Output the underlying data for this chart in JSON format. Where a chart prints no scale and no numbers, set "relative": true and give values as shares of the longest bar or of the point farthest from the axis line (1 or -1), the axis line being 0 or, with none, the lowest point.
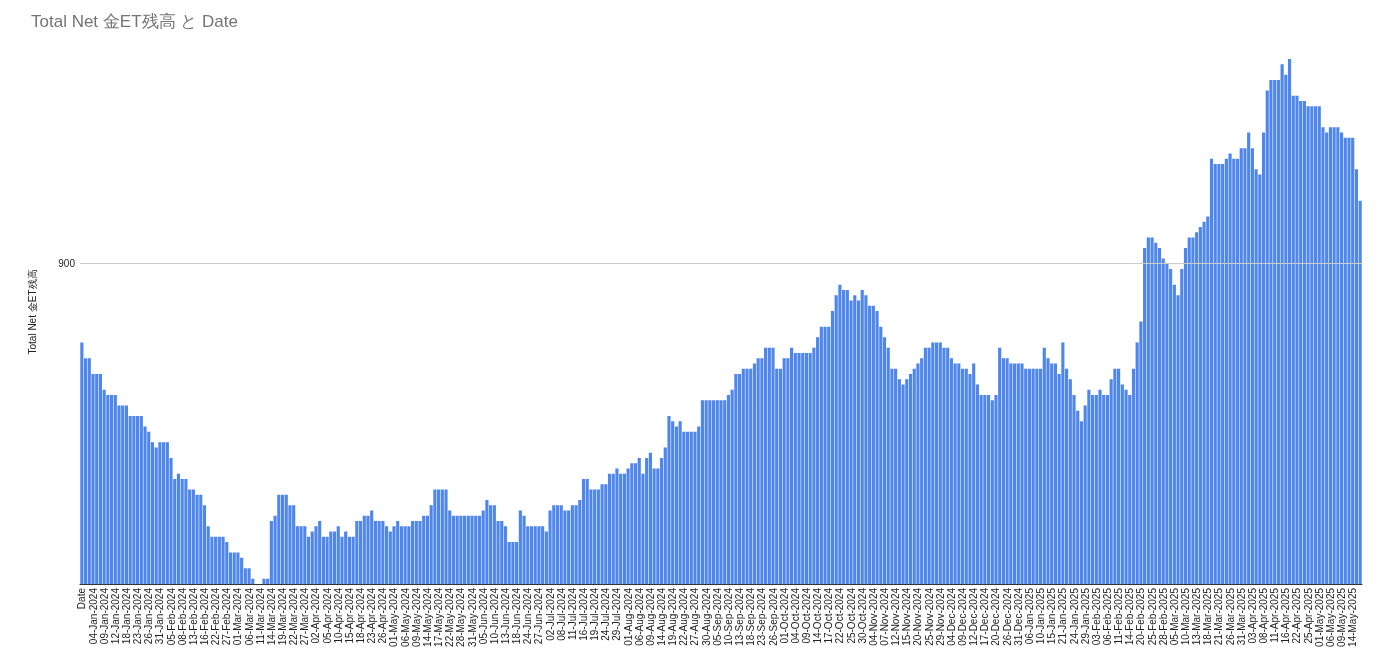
{
  "chart_data": {
    "type": "bar",
    "title": "Total Net 金ET残高 と Date",
    "ylabel": "Total Net 金ET残高",
    "relative": true,
    "color": "#4f86ec",
    "ref_lines": [
      {
        "axis": "y",
        "value": 0.61,
        "color": "#cccccc"
      }
    ],
    "annotations": [
      "900"
    ],
    "categories": [
      "Date",
      null,
      null,
      "04-Jan-2024",
      null,
      null,
      "09-Jan-2024",
      null,
      null,
      "12-Jan-2024",
      null,
      null,
      "18-Jan-2024",
      null,
      null,
      "23-Jan-2024",
      null,
      null,
      "26-Jan-2024",
      null,
      null,
      "31-Jan-2024",
      null,
      null,
      "05-Feb-2024",
      null,
      null,
      "08-Feb-2024",
      null,
      null,
      "13-Feb-2024",
      null,
      null,
      "16-Feb-2024",
      null,
      null,
      "22-Feb-2024",
      null,
      null,
      "27-Feb-2024",
      null,
      null,
      "01-Mar-2024",
      null,
      null,
      "06-Mar-2024",
      null,
      null,
      "11-Mar-2024",
      null,
      null,
      "14-Mar-2024",
      null,
      null,
      "19-Mar-2024",
      null,
      null,
      "22-Mar-2024",
      null,
      null,
      "27-Mar-2024",
      null,
      null,
      "02-Apr-2024",
      null,
      null,
      "05-Apr-2024",
      null,
      null,
      "10-Apr-2024",
      null,
      null,
      "15-Apr-2024",
      null,
      null,
      "18-Apr-2024",
      null,
      null,
      "23-Apr-2024",
      null,
      null,
      "26-Apr-2024",
      null,
      null,
      "01-May-2024",
      null,
      null,
      "06-May-2024",
      null,
      null,
      "09-May-2024",
      null,
      null,
      "14-May-2024",
      null,
      null,
      "17-May-2024",
      null,
      null,
      "22-May-2024",
      null,
      null,
      "28-May-2024",
      null,
      null,
      "31-May-2024",
      null,
      null,
      "05-Jun-2024",
      null,
      null,
      "10-Jun-2024",
      null,
      null,
      "13-Jun-2024",
      null,
      null,
      "18-Jun-2024",
      null,
      null,
      "24-Jun-2024",
      null,
      null,
      "27-Jun-2024",
      null,
      null,
      "02-Jul-2024",
      null,
      null,
      "08-Jul-2024",
      null,
      null,
      "11-Jul-2024",
      null,
      null,
      "16-Jul-2024",
      null,
      null,
      "19-Jul-2024",
      null,
      null,
      "24-Jul-2024",
      null,
      null,
      "29-Jul-2024",
      null,
      null,
      "01-Aug-2024",
      null,
      null,
      "06-Aug-2024",
      null,
      null,
      "09-Aug-2024",
      null,
      null,
      "14-Aug-2024",
      null,
      null,
      "19-Aug-2024",
      null,
      null,
      "22-Aug-2024",
      null,
      null,
      "27-Aug-2024",
      null,
      null,
      "30-Aug-2024",
      null,
      null,
      "05-Sep-2024",
      null,
      null,
      "10-Sep-2024",
      null,
      null,
      "13-Sep-2024",
      null,
      null,
      "18-Sep-2024",
      null,
      null,
      "23-Sep-2024",
      null,
      null,
      "26-Sep-2024",
      null,
      null,
      "01-Oct-2024",
      null,
      null,
      "04-Oct-2024",
      null,
      null,
      "09-Oct-2024",
      null,
      null,
      "14-Oct-2024",
      null,
      null,
      "17-Oct-2024",
      null,
      null,
      "22-Oct-2024",
      null,
      null,
      "25-Oct-2024",
      null,
      null,
      "30-Oct-2024",
      null,
      null,
      "04-Nov-2024",
      null,
      null,
      "07-Nov-2024",
      null,
      null,
      "12-Nov-2024",
      null,
      null,
      "15-Nov-2024",
      null,
      null,
      "20-Nov-2024",
      null,
      null,
      "25-Nov-2024",
      null,
      null,
      "29-Nov-2024",
      null,
      null,
      "04-Dec-2024",
      null,
      null,
      "09-Dec-2024",
      null,
      null,
      "12-Dec-2024",
      null,
      null,
      "17-Dec-2024",
      null,
      null,
      "20-Dec-2024",
      null,
      null,
      "26-Dec-2024",
      null,
      null,
      "31-Dec-2024",
      null,
      null,
      "06-Jan-2025",
      null,
      null,
      "10-Jan-2025",
      null,
      null,
      "15-Jan-2025",
      null,
      null,
      "21-Jan-2025",
      null,
      null,
      "24-Jan-2025",
      null,
      null,
      "29-Jan-2025",
      null,
      null,
      "03-Feb-2025",
      null,
      null,
      "06-Feb-2025",
      null,
      null,
      "11-Feb-2025",
      null,
      null,
      "14-Feb-2025",
      null,
      null,
      "20-Feb-2025",
      null,
      null,
      "25-Feb-2025",
      null,
      null,
      "28-Feb-2025",
      null,
      null,
      "05-Mar-2025",
      null,
      null,
      "10-Mar-2025",
      null,
      null,
      "13-Mar-2025",
      null,
      null,
      "18-Mar-2025",
      null,
      null,
      "21-Mar-2025",
      null,
      null,
      "26-Mar-2025",
      null,
      null,
      "31-Mar-2025",
      null,
      null,
      "03-Apr-2025",
      null,
      null,
      "08-Apr-2025",
      null,
      null,
      "11-Apr-2025",
      null,
      null,
      "16-Apr-2025",
      null,
      null,
      "22-Apr-2025",
      null,
      null,
      "25-Apr-2025",
      null,
      null,
      "01-May-2025",
      null,
      null,
      "06-May-2025",
      null,
      null,
      "09-May-2025",
      null,
      null,
      "14-May-2025",
      null,
      null
    ],
    "values": [
      0.46,
      0.43,
      0.43,
      0.4,
      0.4,
      0.4,
      0.37,
      0.36,
      0.36,
      0.36,
      0.34,
      0.34,
      0.34,
      0.32,
      0.32,
      0.32,
      0.32,
      0.3,
      0.29,
      0.27,
      0.26,
      0.27,
      0.27,
      0.27,
      0.24,
      0.2,
      0.21,
      0.2,
      0.2,
      0.18,
      0.18,
      0.17,
      0.17,
      0.15,
      0.11,
      0.09,
      0.09,
      0.09,
      0.09,
      0.08,
      0.06,
      0.06,
      0.06,
      0.05,
      0.03,
      0.03,
      0.01,
      null,
      null,
      0.01,
      0.01,
      0.12,
      0.13,
      0.17,
      0.17,
      0.17,
      0.15,
      0.15,
      0.11,
      0.11,
      0.11,
      0.09,
      0.1,
      0.11,
      0.12,
      0.09,
      0.09,
      0.1,
      0.1,
      0.11,
      0.09,
      0.1,
      0.09,
      0.09,
      0.12,
      0.12,
      0.13,
      0.13,
      0.14,
      0.12,
      0.12,
      0.12,
      0.11,
      0.1,
      0.11,
      0.12,
      0.11,
      0.11,
      0.11,
      0.12,
      0.12,
      0.12,
      0.13,
      0.13,
      0.15,
      0.18,
      0.18,
      0.18,
      0.18,
      0.14,
      0.13,
      0.13,
      0.13,
      0.13,
      0.13,
      0.13,
      0.13,
      0.13,
      0.14,
      0.16,
      0.15,
      0.15,
      0.12,
      0.12,
      0.11,
      0.08,
      0.08,
      0.08,
      0.14,
      0.13,
      0.11,
      0.11,
      0.11,
      0.11,
      0.11,
      0.1,
      0.14,
      0.15,
      0.15,
      0.15,
      0.14,
      0.14,
      0.15,
      0.15,
      0.16,
      0.2,
      0.2,
      0.18,
      0.18,
      0.18,
      0.19,
      0.19,
      0.21,
      0.21,
      0.22,
      0.21,
      0.21,
      0.22,
      0.23,
      0.23,
      0.24,
      0.21,
      0.24,
      0.25,
      0.22,
      0.22,
      0.24,
      0.26,
      0.32,
      0.31,
      0.3,
      0.31,
      0.29,
      0.29,
      0.29,
      0.29,
      0.3,
      0.35,
      0.35,
      0.35,
      0.35,
      0.35,
      0.35,
      0.35,
      0.36,
      0.37,
      0.4,
      0.4,
      0.41,
      0.41,
      0.41,
      0.42,
      0.43,
      0.43,
      0.45,
      0.45,
      0.45,
      0.41,
      0.41,
      0.43,
      0.43,
      0.45,
      0.44,
      0.44,
      0.44,
      0.44,
      0.44,
      0.45,
      0.47,
      0.49,
      0.49,
      0.49,
      0.52,
      0.55,
      0.57,
      0.56,
      0.56,
      0.54,
      0.55,
      0.54,
      0.56,
      0.55,
      0.53,
      0.53,
      0.52,
      0.49,
      0.47,
      0.45,
      0.41,
      0.41,
      0.39,
      0.38,
      0.39,
      0.4,
      0.41,
      0.42,
      0.43,
      0.45,
      0.45,
      0.46,
      0.46,
      0.46,
      0.45,
      0.45,
      0.43,
      0.42,
      0.42,
      0.41,
      0.41,
      0.4,
      0.42,
      0.38,
      0.36,
      0.36,
      0.36,
      0.35,
      0.36,
      0.45,
      0.43,
      0.43,
      0.42,
      0.42,
      0.42,
      0.42,
      0.41,
      0.41,
      0.41,
      0.41,
      0.41,
      0.45,
      0.43,
      0.42,
      0.42,
      0.4,
      0.46,
      0.41,
      0.39,
      0.36,
      0.33,
      0.31,
      0.34,
      0.37,
      0.36,
      0.36,
      0.37,
      0.36,
      0.36,
      0.39,
      0.41,
      0.41,
      0.38,
      0.37,
      0.36,
      0.41,
      0.46,
      0.5,
      0.64,
      0.66,
      0.66,
      0.65,
      0.64,
      0.62,
      0.61,
      0.6,
      0.57,
      0.55,
      0.6,
      0.64,
      0.66,
      0.66,
      0.67,
      0.68,
      0.69,
      0.7,
      0.81,
      0.8,
      0.8,
      0.8,
      0.81,
      0.82,
      0.81,
      0.81,
      0.83,
      0.83,
      0.86,
      0.83,
      0.79,
      0.78,
      0.86,
      0.94,
      0.96,
      0.96,
      0.96,
      0.99,
      0.97,
      1.0,
      0.93,
      0.93,
      0.92,
      0.92,
      0.91,
      0.91,
      0.91,
      0.91,
      0.87,
      0.86,
      0.87,
      0.87,
      0.87,
      0.86,
      0.85,
      0.85,
      0.85,
      0.79,
      0.73
    ]
  }
}
